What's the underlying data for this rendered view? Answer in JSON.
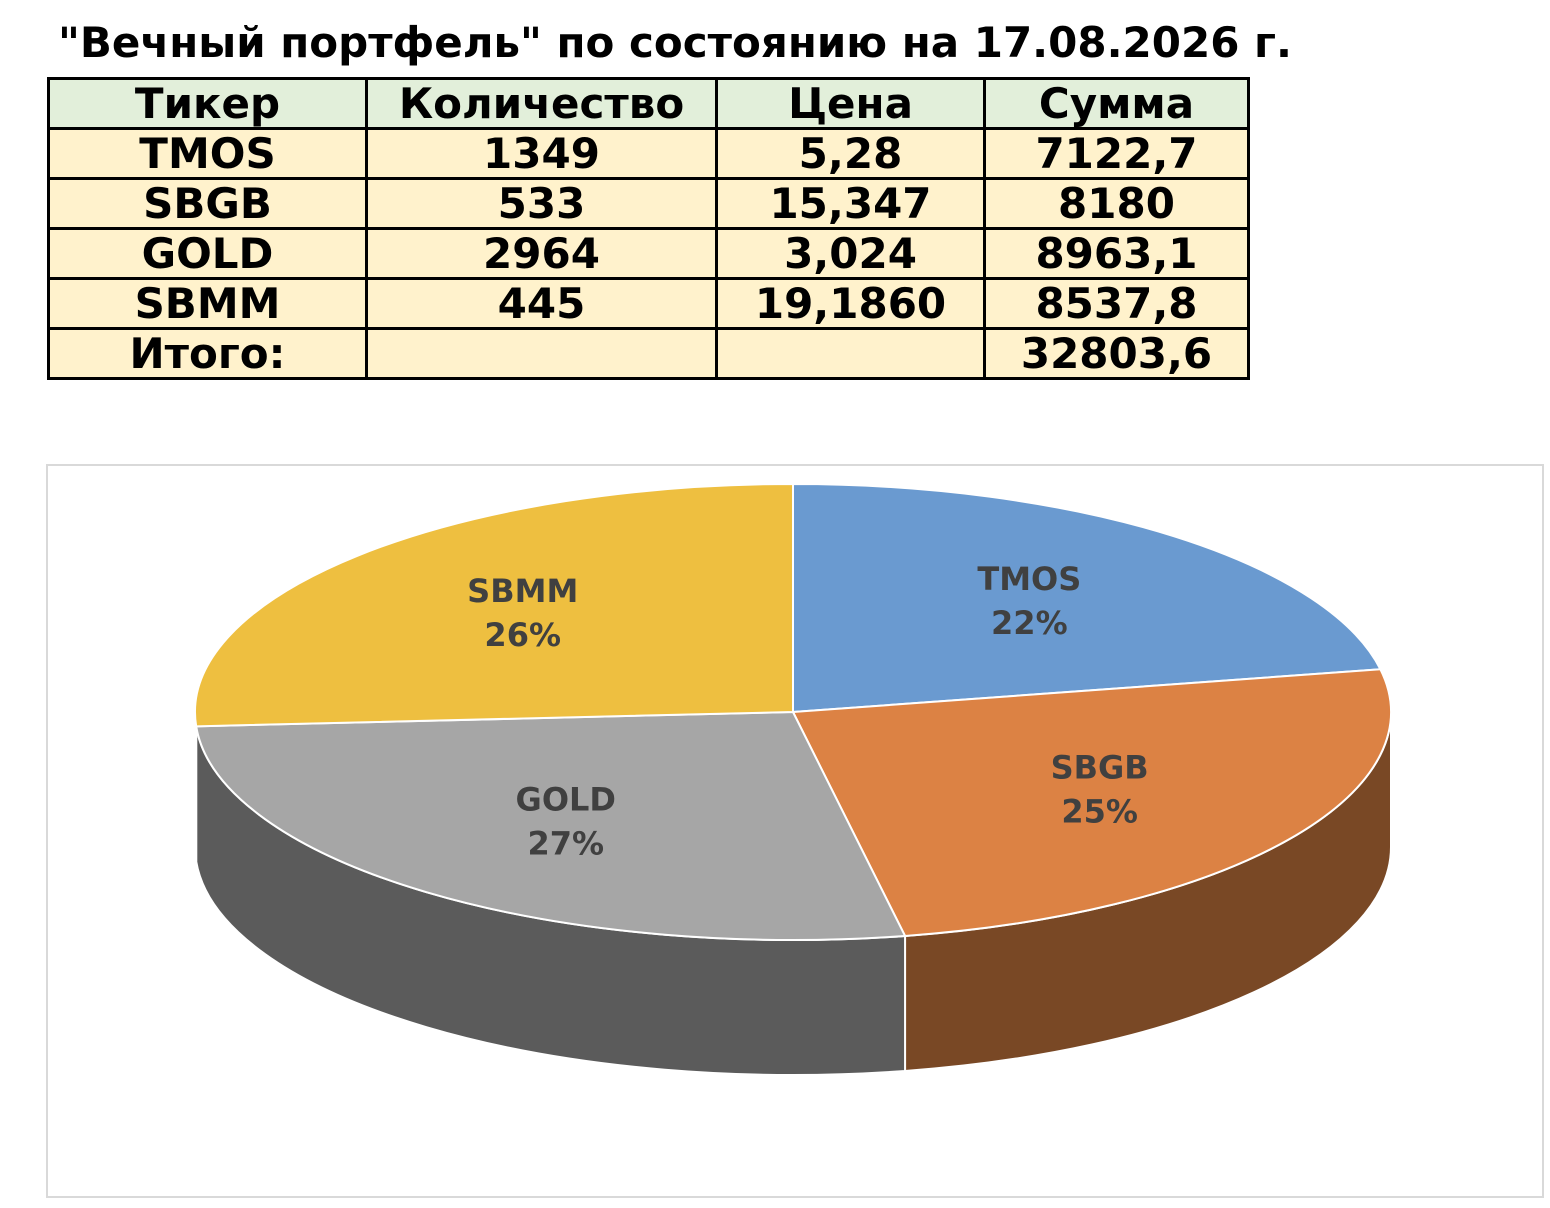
{
  "title": "\"Вечный портфель\" по состоянию на 17.08.2026 г.",
  "table": {
    "header": [
      "Тикер",
      "Количество",
      "Цена",
      "Сумма"
    ],
    "rows": [
      [
        "TMOS",
        "1349",
        "5,28",
        "7122,7"
      ],
      [
        "SBGB",
        "533",
        "15,347",
        "8180"
      ],
      [
        "GOLD",
        "2964",
        "3,024",
        "8963,1"
      ],
      [
        "SBMM",
        "445",
        "19,1860",
        "8537,8"
      ]
    ],
    "total": {
      "label": "Итого:",
      "sum": "32803,6"
    }
  },
  "chart_data": {
    "type": "pie",
    "categories": [
      "TMOS",
      "SBGB",
      "GOLD",
      "SBMM"
    ],
    "values": [
      22,
      25,
      27,
      26
    ],
    "value_labels": [
      "22%",
      "25%",
      "27%",
      "26%"
    ],
    "colors": [
      "#6a9ad0",
      "#dc8244",
      "#a6a6a6",
      "#eebf40"
    ]
  }
}
